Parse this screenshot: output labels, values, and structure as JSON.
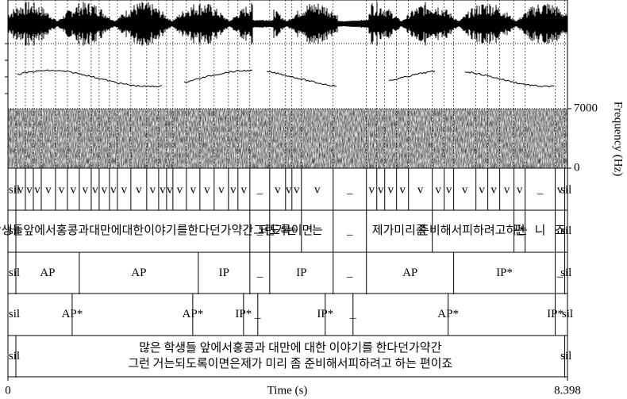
{
  "time_axis": {
    "label": "Time (s)",
    "ticks": [
      0,
      8.398
    ]
  },
  "frequency_axis": {
    "label": "Frequency (Hz)",
    "ticks": [
      0,
      7000
    ]
  },
  "tiers": [
    {
      "starts": [
        0,
        0.119,
        0.262,
        0.381,
        0.5,
        0.714,
        0.893,
        1.071,
        1.25,
        1.369,
        1.524,
        1.643,
        1.845,
        2.083,
        2.262,
        2.381,
        2.476,
        2.679,
        2.881,
        3.095,
        3.31,
        3.452,
        3.631,
        3.929,
        4.167,
        4.262,
        4.405,
        4.881,
        5.381,
        5.536,
        5.655,
        5.833,
        6.012,
        6.369,
        6.548,
        6.69,
        7.024,
        7.202,
        7.381,
        7.595,
        7.762,
        8.214,
        8.357
      ],
      "labels": [
        "sil",
        "v",
        "v",
        "v",
        "v",
        "v",
        "v",
        "v",
        "v",
        "v",
        "v",
        "v",
        "v",
        "v",
        "v",
        "v",
        "v",
        "v",
        "v",
        "v",
        "v",
        "v",
        "_",
        "v",
        "v",
        "v",
        "v",
        "_",
        "v",
        "v",
        "v",
        "v",
        "v",
        "v",
        "v",
        "v",
        "v",
        "v",
        "v",
        "v",
        "_",
        "v",
        "sil"
      ]
    },
    {
      "starts": [
        0,
        0.119,
        3.631,
        3.929,
        4.405,
        4.881,
        5.381,
        6.369,
        7.595,
        7.762,
        8.214,
        8.357
      ],
      "labels": [
        "sil",
        "많은학생들앞에서홍콩과대만에대한이야기를한다던가약간그런거는",
        "_",
        "되도록이면",
        "는",
        "_",
        "제가미리좀",
        "준비해서피하려고하는",
        "편",
        "니",
        "죠",
        "sil"
      ]
    },
    {
      "starts": [
        0,
        0.119,
        1.071,
        2.857,
        3.631,
        3.929,
        4.881,
        5.381,
        6.69,
        8.214,
        8.357
      ],
      "labels": [
        "sil",
        "AP",
        "AP",
        "IP",
        "_",
        "IP",
        "_",
        "AP",
        "IP*",
        "_",
        "sil"
      ]
    },
    {
      "points": [
        0,
        0.964,
        2.774,
        3.536,
        3.75,
        4.762,
        5.179,
        6.607,
        8.214,
        8.398
      ],
      "labels": [
        "sil",
        "AP*",
        "AP*",
        "IP*",
        "_",
        "IP*",
        "_",
        "AP*",
        "IP*",
        "sil"
      ]
    },
    {
      "starts": [
        0,
        0.119,
        8.357
      ],
      "labels": [
        "sil",
        [
          "많은 학생들 앞에서홍콩과 대만에 대한 이야기를 한다던가약간",
          "그런 거는되도록이면은제가 미리 좀 준비해서피하려고 하는 편이죠"
        ],
        "sil"
      ]
    }
  ]
}
